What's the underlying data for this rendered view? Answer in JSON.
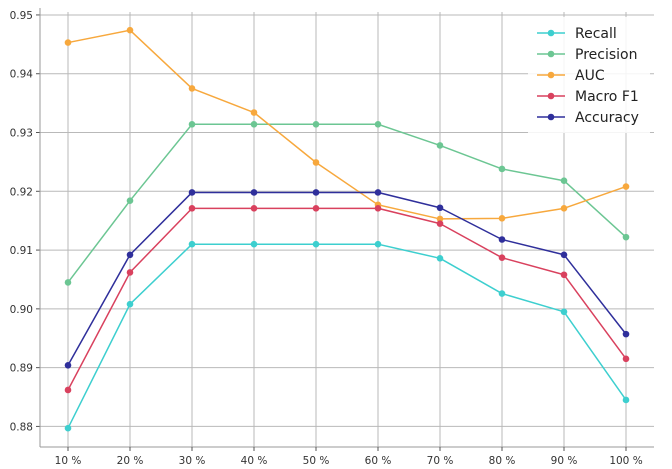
{
  "chart_data": {
    "type": "line",
    "categories": [
      "10 %",
      "20 %",
      "30 %",
      "40 %",
      "50 %",
      "60 %",
      "70 %",
      "80 %",
      "90 %",
      "100 %"
    ],
    "ylim": [
      0.8765,
      0.9505
    ],
    "yticks": [
      "0.88",
      "0.89",
      "0.90",
      "0.91",
      "0.92",
      "0.93",
      "0.94",
      "0.95"
    ],
    "grid": true,
    "legend_position": "top-right",
    "series": [
      {
        "name": "Recall",
        "color": "#3dcfcf",
        "values": [
          0.8797,
          0.9008,
          0.911,
          0.911,
          0.911,
          0.911,
          0.9086,
          0.9026,
          0.8995,
          0.8845
        ]
      },
      {
        "name": "Precision",
        "color": "#6cc693",
        "values": [
          0.9045,
          0.9184,
          0.9314,
          0.9314,
          0.9314,
          0.9314,
          0.9278,
          0.9238,
          0.9218,
          0.9122
        ]
      },
      {
        "name": "AUC",
        "color": "#f7a83d",
        "values": [
          0.9453,
          0.9474,
          0.9375,
          0.9334,
          0.9249,
          0.9177,
          0.9153,
          0.9154,
          0.9171,
          0.9208
        ]
      },
      {
        "name": "Macro F1",
        "color": "#d9415e",
        "values": [
          0.8862,
          0.9062,
          0.9171,
          0.9171,
          0.9171,
          0.9171,
          0.9145,
          0.9087,
          0.9058,
          0.8915
        ]
      },
      {
        "name": "Accuracy",
        "color": "#2f2f9b",
        "values": [
          0.8904,
          0.9092,
          0.9198,
          0.9198,
          0.9198,
          0.9198,
          0.9172,
          0.9118,
          0.9092,
          0.8957
        ]
      }
    ]
  }
}
